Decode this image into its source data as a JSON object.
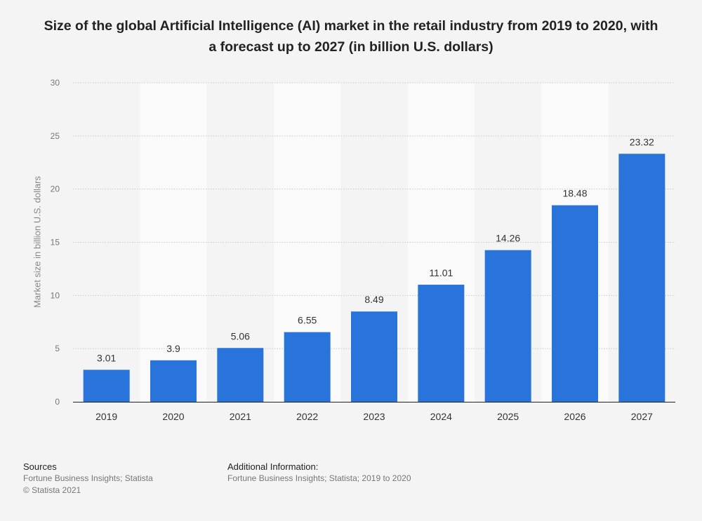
{
  "chart_data": {
    "type": "bar",
    "title": "Size of the global Artificial Intelligence (AI) market in the retail industry from 2019 to 2020, with a forecast up to 2027 (in billion U.S. dollars)",
    "ylabel": "Market size in billion U.S. dollars",
    "xlabel": "",
    "categories": [
      "2019",
      "2020",
      "2021",
      "2022",
      "2023",
      "2024",
      "2025",
      "2026",
      "2027"
    ],
    "values": [
      3.01,
      3.9,
      5.06,
      6.55,
      8.49,
      11.01,
      14.26,
      18.48,
      23.32
    ],
    "value_labels": [
      "3.01",
      "3.9",
      "5.06",
      "6.55",
      "8.49",
      "11.01",
      "14.26",
      "18.48",
      "23.32"
    ],
    "ylim": [
      0,
      30
    ],
    "yticks": [
      0,
      5,
      10,
      15,
      20,
      25,
      30
    ],
    "grid": true,
    "bar_color": "#2874db"
  },
  "footer": {
    "sources_heading": "Sources",
    "sources_text": "Fortune Business Insights; Statista",
    "copyright": "© Statista 2021",
    "additional_heading": "Additional Information:",
    "additional_text": "Fortune Business Insights; Statista; 2019 to 2020"
  }
}
